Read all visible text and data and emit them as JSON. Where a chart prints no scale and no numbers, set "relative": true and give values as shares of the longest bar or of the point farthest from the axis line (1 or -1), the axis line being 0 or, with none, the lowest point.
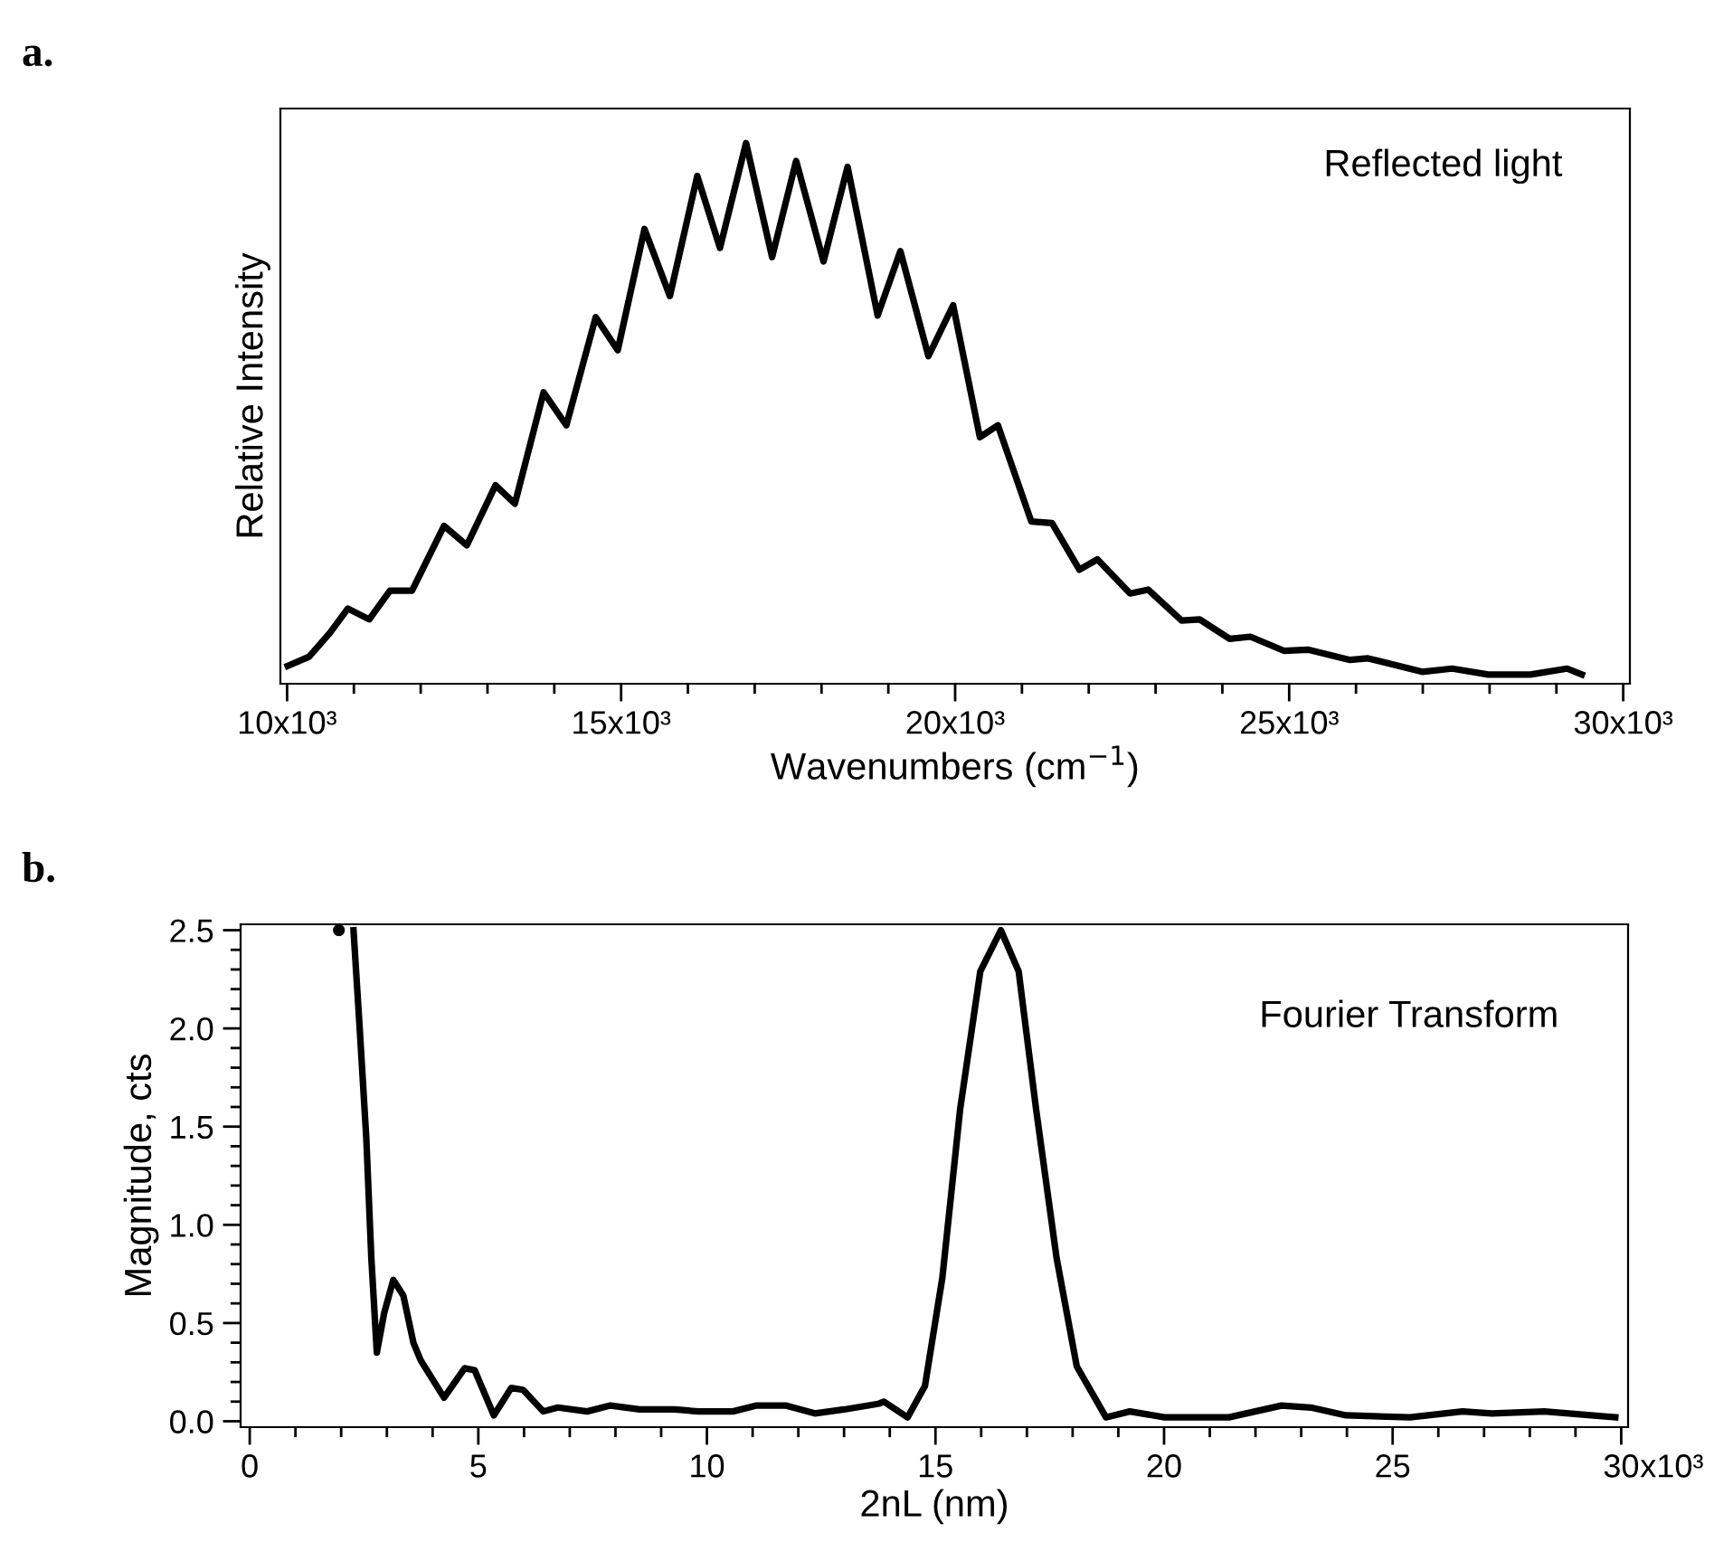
{
  "chart_data": [
    {
      "type": "line",
      "title": "a.",
      "xlabel": "Wavenumbers (cm$^{−1}$)",
      "ylabel": "Relative Intensity",
      "relative": true,
      "tick_labels": "x",
      "xlim": [
        9900,
        30100
      ],
      "xticks": [
        {
          "value": 10000,
          "label": "10x10³"
        },
        {
          "value": 11000,
          "label": null
        },
        {
          "value": 12000,
          "label": null
        },
        {
          "value": 13000,
          "label": null
        },
        {
          "value": 14000,
          "label": null
        },
        {
          "value": 15000,
          "label": "15x10³"
        },
        {
          "value": 16000,
          "label": null
        },
        {
          "value": 17000,
          "label": null
        },
        {
          "value": 18000,
          "label": null
        },
        {
          "value": 19000,
          "label": null
        },
        {
          "value": 20000,
          "label": "20x10³"
        },
        {
          "value": 21000,
          "label": null
        },
        {
          "value": 22000,
          "label": null
        },
        {
          "value": 23000,
          "label": null
        },
        {
          "value": 24000,
          "label": null
        },
        {
          "value": 25000,
          "label": "25x10³"
        },
        {
          "value": 26000,
          "label": null
        },
        {
          "value": 27000,
          "label": null
        },
        {
          "value": 28000,
          "label": null
        },
        {
          "value": 29000,
          "label": null
        },
        {
          "value": 30000,
          "label": "30x10³"
        }
      ],
      "annotations": [
        "Reflected light"
      ],
      "series": [
        {
          "color": "#000000",
          "x": [
            10010,
            10330,
            10640,
            10910,
            11230,
            11540,
            11870,
            12350,
            12690,
            13120,
            13410,
            13840,
            14180,
            14620,
            14950,
            15350,
            15730,
            16140,
            16480,
            16870,
            17260,
            17620,
            18030,
            18390,
            18840,
            19180,
            19600,
            19970,
            20370,
            20640,
            21140,
            21450,
            21860,
            22130,
            22620,
            22890,
            23390,
            23660,
            24110,
            24420,
            24920,
            25280,
            25910,
            26180,
            26990,
            27440,
            27980,
            28610,
            29160,
            29380
          ],
          "values": [
            0.033,
            0.05,
            0.094,
            0.139,
            0.119,
            0.172,
            0.172,
            0.292,
            0.256,
            0.367,
            0.333,
            0.539,
            0.478,
            0.678,
            0.617,
            0.841,
            0.717,
            0.939,
            0.806,
            1.0,
            0.789,
            0.967,
            0.781,
            0.956,
            0.681,
            0.8,
            0.606,
            0.7,
            0.456,
            0.478,
            0.3,
            0.297,
            0.211,
            0.23,
            0.167,
            0.174,
            0.117,
            0.119,
            0.083,
            0.087,
            0.061,
            0.063,
            0.044,
            0.047,
            0.022,
            0.028,
            0.017,
            0.017,
            0.028,
            0.017
          ]
        }
      ]
    },
    {
      "type": "line",
      "title": "b.",
      "xlabel": "2nL (nm)",
      "ylabel": "Magnitude, cts",
      "xlim": [
        -0.2,
        30.15
      ],
      "ylim": [
        -0.03,
        2.53
      ],
      "xticks": [
        0,
        {
          "value": 1,
          "label": null
        },
        {
          "value": 2,
          "label": null
        },
        {
          "value": 3,
          "label": null
        },
        {
          "value": 4,
          "label": null
        },
        5,
        {
          "value": 6,
          "label": null
        },
        {
          "value": 7,
          "label": null
        },
        {
          "value": 8,
          "label": null
        },
        {
          "value": 9,
          "label": null
        },
        10,
        {
          "value": 11,
          "label": null
        },
        {
          "value": 12,
          "label": null
        },
        {
          "value": 13,
          "label": null
        },
        {
          "value": 14,
          "label": null
        },
        15,
        {
          "value": 16,
          "label": null
        },
        {
          "value": 17,
          "label": null
        },
        {
          "value": 18,
          "label": null
        },
        {
          "value": 19,
          "label": null
        },
        20,
        {
          "value": 21,
          "label": null
        },
        {
          "value": 22,
          "label": null
        },
        {
          "value": 23,
          "label": null
        },
        {
          "value": 24,
          "label": null
        },
        25,
        {
          "value": 26,
          "label": null
        },
        {
          "value": 27,
          "label": null
        },
        {
          "value": 28,
          "label": null
        },
        {
          "value": 29,
          "label": null
        },
        30
      ],
      "yticks": [
        {
          "value": 0,
          "label": "0.0"
        },
        {
          "value": 0.1,
          "label": null
        },
        {
          "value": 0.2,
          "label": null
        },
        {
          "value": 0.3,
          "label": null
        },
        {
          "value": 0.4,
          "label": null
        },
        0.5,
        {
          "value": 0.6,
          "label": null
        },
        {
          "value": 0.7,
          "label": null
        },
        {
          "value": 0.8,
          "label": null
        },
        {
          "value": 0.9,
          "label": null
        },
        {
          "value": 1,
          "label": "1.0"
        },
        {
          "value": 1.1,
          "label": null
        },
        {
          "value": 1.2,
          "label": null
        },
        {
          "value": 1.3,
          "label": null
        },
        {
          "value": 1.4,
          "label": null
        },
        1.5,
        {
          "value": 1.6,
          "label": null
        },
        {
          "value": 1.7,
          "label": null
        },
        {
          "value": 1.8,
          "label": null
        },
        {
          "value": 1.9,
          "label": null
        },
        {
          "value": 2,
          "label": "2.0"
        },
        {
          "value": 2.1,
          "label": null
        },
        {
          "value": 2.2,
          "label": null
        },
        {
          "value": 2.3,
          "label": null
        },
        {
          "value": 2.4,
          "label": null
        },
        2.5
      ],
      "annotations": [
        "Fourier Transform",
        "x10³"
      ],
      "series": [
        {
          "type": "scatter",
          "marker": "circle",
          "color": "#000000",
          "x": [
            1.95
          ],
          "values": [
            2.5
          ]
        },
        {
          "color": "#000000",
          "x": [
            2.27,
            2.4,
            2.55,
            2.66,
            2.78,
            2.94,
            3.14,
            3.36,
            3.58,
            3.74,
            4.25,
            4.7,
            4.92,
            5.34,
            5.72,
            5.98,
            6.42,
            6.74,
            7.38,
            7.89,
            8.53,
            9.3,
            9.81,
            10.57,
            11.09,
            11.72,
            12.36,
            13.0,
            13.77,
            13.87,
            14.39,
            14.77,
            15.15,
            15.54,
            15.98,
            16.43,
            16.82,
            17.2,
            17.65,
            18.09,
            18.73,
            19.25,
            20.01,
            21.42,
            22.57,
            23.21,
            23.98,
            25.38,
            26.53,
            27.17,
            28.32,
            29.87
          ],
          "values": [
            2.5,
            2.02,
            1.44,
            0.83,
            0.35,
            0.55,
            0.72,
            0.64,
            0.4,
            0.31,
            0.12,
            0.27,
            0.26,
            0.03,
            0.17,
            0.16,
            0.05,
            0.07,
            0.05,
            0.08,
            0.06,
            0.06,
            0.05,
            0.05,
            0.08,
            0.08,
            0.04,
            0.06,
            0.09,
            0.1,
            0.02,
            0.18,
            0.73,
            1.59,
            2.29,
            2.5,
            2.29,
            1.59,
            0.83,
            0.28,
            0.02,
            0.05,
            0.02,
            0.02,
            0.08,
            0.07,
            0.03,
            0.02,
            0.05,
            0.04,
            0.05,
            0.02
          ]
        }
      ]
    }
  ]
}
